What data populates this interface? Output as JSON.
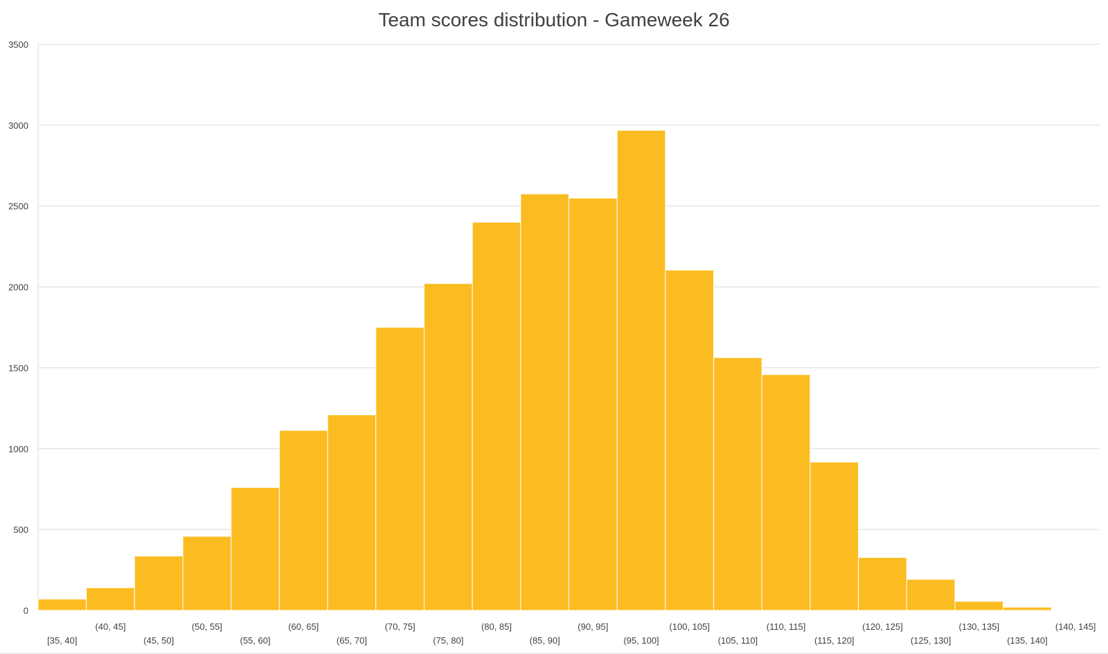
{
  "chart_data": {
    "type": "bar",
    "title": "Team scores distribution - Gameweek 26",
    "xlabel": "",
    "ylabel": "",
    "categories": [
      "[35, 40]",
      "(40, 45]",
      "(45, 50]",
      "(50, 55]",
      "(55, 60]",
      "(60, 65]",
      "(65, 70]",
      "(70, 75]",
      "(75, 80]",
      "(80, 85]",
      "(85, 90]",
      "(90, 95]",
      "(95, 100]",
      "(100, 105]",
      "(105, 110]",
      "(110, 115]",
      "(115, 120]",
      "(120, 125]",
      "(125, 130]",
      "(130, 135]",
      "(135, 140]",
      "(140, 145]"
    ],
    "values": [
      70,
      140,
      336,
      458,
      760,
      1113,
      1209,
      1750,
      2021,
      2400,
      2575,
      2549,
      2968,
      2104,
      1563,
      1458,
      917,
      327,
      192,
      56,
      20,
      4
    ],
    "ylim": [
      0,
      3500
    ],
    "yticks": [
      0,
      500,
      1000,
      1500,
      2000,
      2500,
      3000,
      3500
    ],
    "grid": true,
    "legend": "none",
    "colors": {
      "bar": "#FBBC21",
      "bar_edge": "#FFFFFF",
      "grid": "#D9D9D9",
      "text": "#404040"
    }
  }
}
